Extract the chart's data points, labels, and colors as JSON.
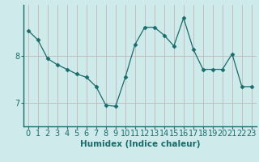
{
  "x": [
    0,
    1,
    2,
    3,
    4,
    5,
    6,
    7,
    8,
    9,
    10,
    11,
    12,
    13,
    14,
    15,
    16,
    17,
    18,
    19,
    20,
    21,
    22,
    23
  ],
  "y": [
    8.55,
    8.35,
    7.95,
    7.82,
    7.72,
    7.62,
    7.55,
    7.35,
    6.95,
    6.93,
    7.55,
    8.25,
    8.62,
    8.62,
    8.45,
    8.22,
    8.82,
    8.15,
    7.72,
    7.72,
    7.72,
    8.05,
    7.35,
    7.35
  ],
  "line_color": "#1a6b6b",
  "marker": "D",
  "marker_size": 2.5,
  "bg_color": "#ceeaea",
  "grid_color_v": "#c2dada",
  "grid_color_h": "#c2b8b8",
  "xlabel": "Humidex (Indice chaleur)",
  "yticks": [
    7,
    8
  ],
  "ylim": [
    6.5,
    9.1
  ],
  "xlim": [
    -0.5,
    23.5
  ],
  "xlabel_fontsize": 7.5,
  "tick_fontsize": 7
}
